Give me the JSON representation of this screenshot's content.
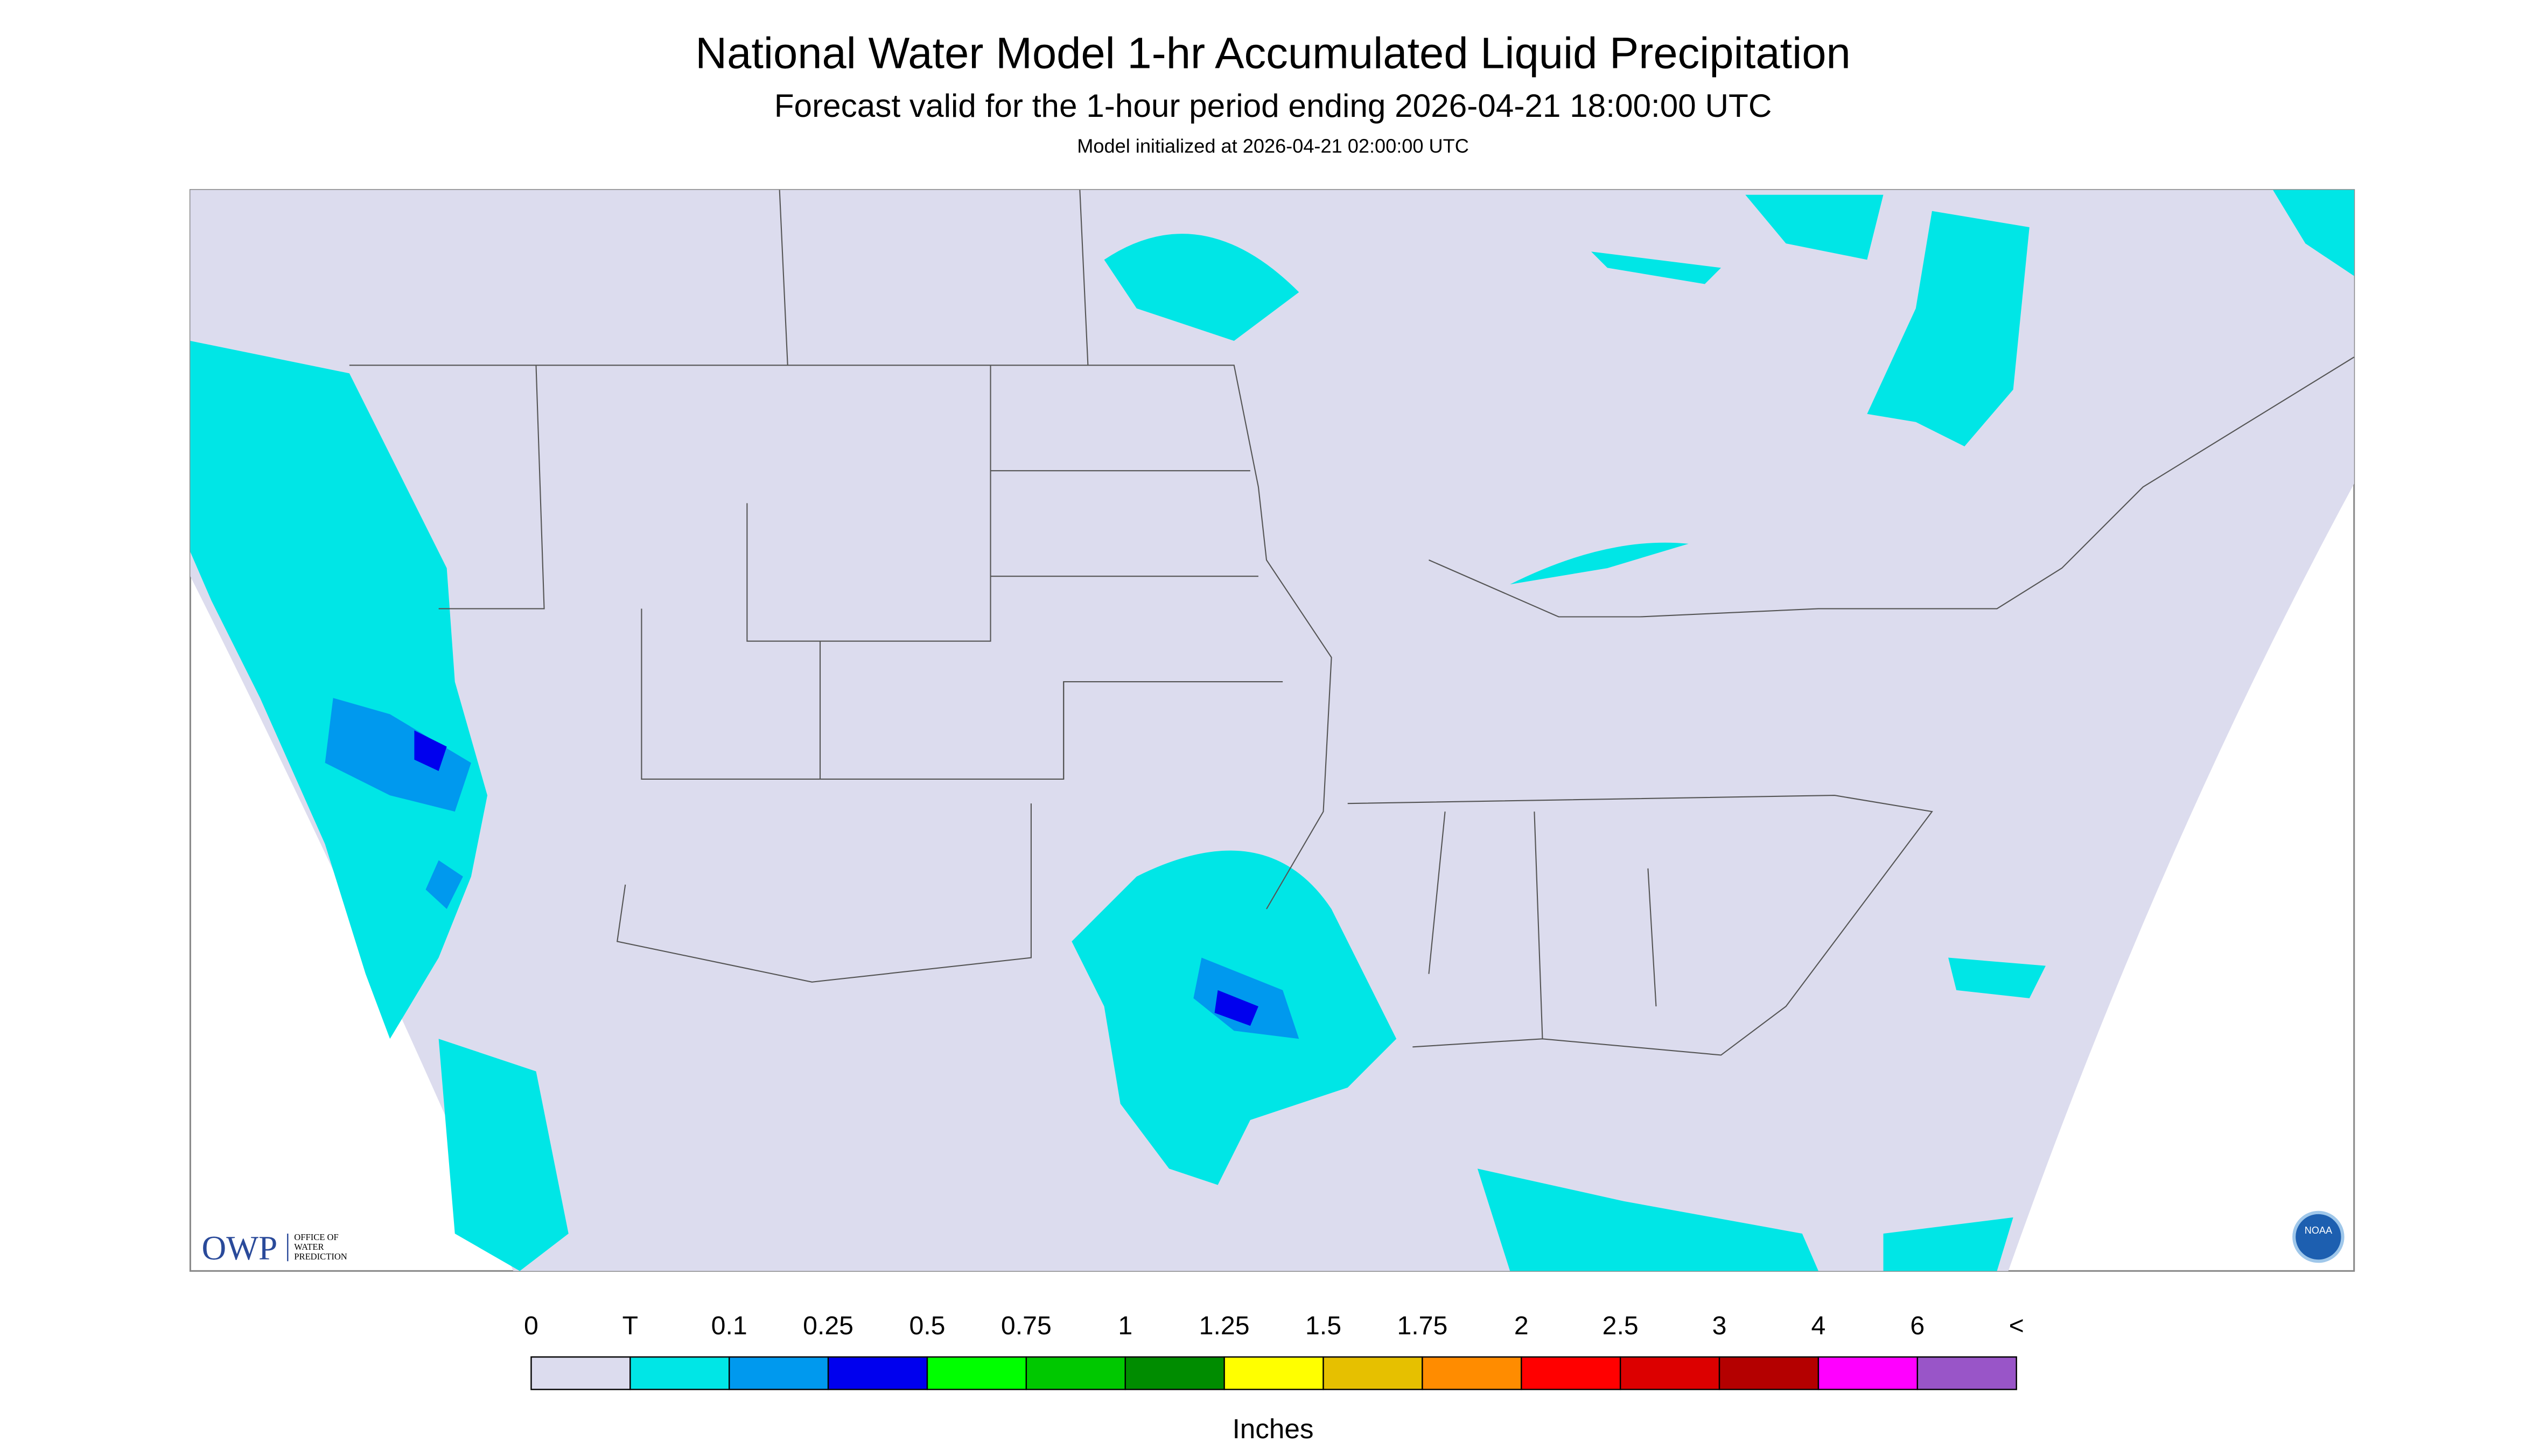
{
  "header": {
    "title": "National Water Model 1-hr Accumulated Liquid Precipitation",
    "subtitle": "Forecast valid for the 1-hour period ending 2026-04-21 18:00:00 UTC",
    "init": "Model initialized at 2026-04-21 02:00:00 UTC"
  },
  "logos": {
    "owp": "OWP",
    "owp_lines": [
      "OFFICE OF",
      "WATER",
      "PREDICTION"
    ],
    "noaa": "NOAA"
  },
  "legend": {
    "labels": [
      "0",
      "T",
      "0.1",
      "0.25",
      "0.5",
      "0.75",
      "1",
      "1.25",
      "1.5",
      "1.75",
      "2",
      "2.5",
      "3",
      "4",
      "6",
      "<"
    ],
    "colors": [
      "#dcdcee",
      "#00e6e6",
      "#0099ee",
      "#0000ee",
      "#00ff00",
      "#00c800",
      "#008c00",
      "#ffff00",
      "#e6c000",
      "#ff8c00",
      "#ff0000",
      "#dc0000",
      "#b40000",
      "#ff00ff",
      "#9955c8"
    ],
    "unit": "Inches"
  }
}
